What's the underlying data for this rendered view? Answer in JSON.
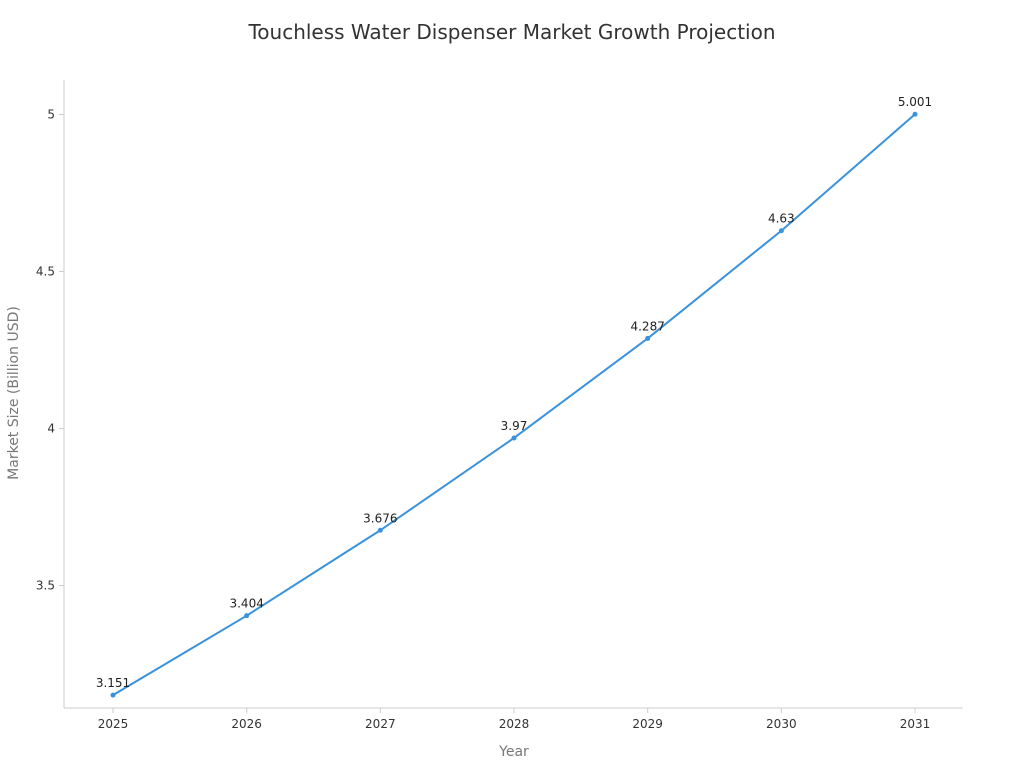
{
  "chart_data": {
    "type": "line",
    "title": "Touchless Water Dispenser Market Growth Projection",
    "xlabel": "Year",
    "ylabel": "Market Size (Billion USD)",
    "categories": [
      "2025",
      "2026",
      "2027",
      "2028",
      "2029",
      "2030",
      "2031"
    ],
    "series": [
      {
        "values": [
          3.151,
          3.404,
          3.676,
          3.97,
          4.287,
          4.63,
          5.001
        ]
      }
    ],
    "data_labels": [
      "3.151",
      "3.404",
      "3.676",
      "3.97",
      "4.287",
      "4.63",
      "5.001"
    ],
    "yticks": [
      3.5,
      4,
      4.5,
      5
    ],
    "ytick_labels": [
      "3.5",
      "4",
      "4.5",
      "5"
    ],
    "ylim": [
      3.11,
      5.11
    ],
    "grid": false,
    "line_color": "#3a92dc",
    "axis_color": "#cccccc"
  }
}
